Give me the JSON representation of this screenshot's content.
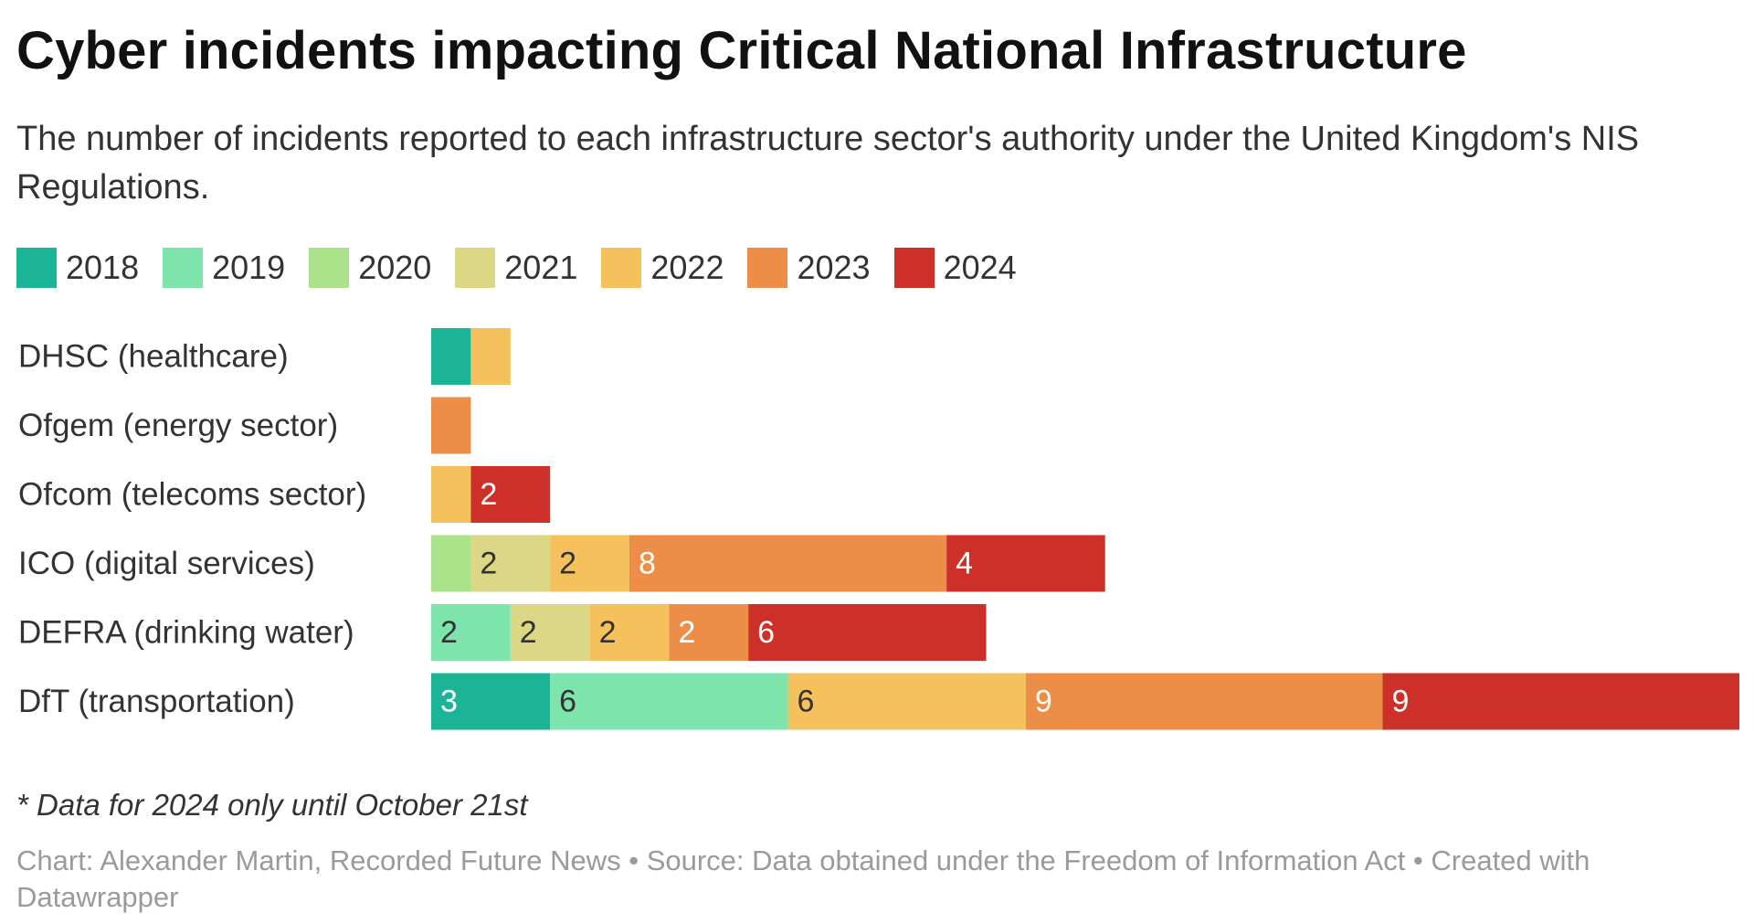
{
  "title": "Cyber incidents impacting Critical National Infrastructure",
  "subtitle": "The number of incidents reported to each infrastructure sector's authority under the United Kingdom's NIS Regulations.",
  "footnote": "* Data for 2024 only until October 21st",
  "credits": "Chart: Alexander Martin, Recorded Future News • Source: Data obtained under the Freedom of Information Act • Created with Datawrapper",
  "chart_data": {
    "type": "bar",
    "orientation": "horizontal",
    "stacked": true,
    "title": "Cyber incidents impacting Critical National Infrastructure",
    "xlabel": "",
    "ylabel": "",
    "xlim": [
      0,
      33
    ],
    "legend_position": "top-left",
    "categories": [
      "DHSC (healthcare)",
      "Ofgem (energy sector)",
      "Ofcom (telecoms sector)",
      "ICO (digital services)",
      "DEFRA (drinking water)",
      "DfT (transportation)"
    ],
    "series": [
      {
        "name": "2018",
        "color": "#1cb497",
        "values": [
          1,
          0,
          0,
          0,
          0,
          3
        ]
      },
      {
        "name": "2019",
        "color": "#7de4ac",
        "values": [
          0,
          0,
          0,
          0,
          2,
          6
        ]
      },
      {
        "name": "2020",
        "color": "#a9e289",
        "values": [
          0,
          0,
          0,
          1,
          0,
          0
        ]
      },
      {
        "name": "2021",
        "color": "#dcd784",
        "values": [
          0,
          0,
          0,
          2,
          2,
          0
        ]
      },
      {
        "name": "2022",
        "color": "#f5c15c",
        "values": [
          1,
          0,
          1,
          2,
          2,
          6
        ]
      },
      {
        "name": "2023",
        "color": "#ec8e47",
        "values": [
          0,
          1,
          0,
          8,
          2,
          9
        ]
      },
      {
        "name": "2024",
        "color": "#cc3029",
        "values": [
          0,
          0,
          2,
          4,
          6,
          9
        ]
      }
    ],
    "label_colors": {
      "2018": "#ffffff",
      "2019": "#333333",
      "2020": "#333333",
      "2021": "#333333",
      "2022": "#333333",
      "2023": "#ffffff",
      "2024": "#ffffff"
    }
  }
}
